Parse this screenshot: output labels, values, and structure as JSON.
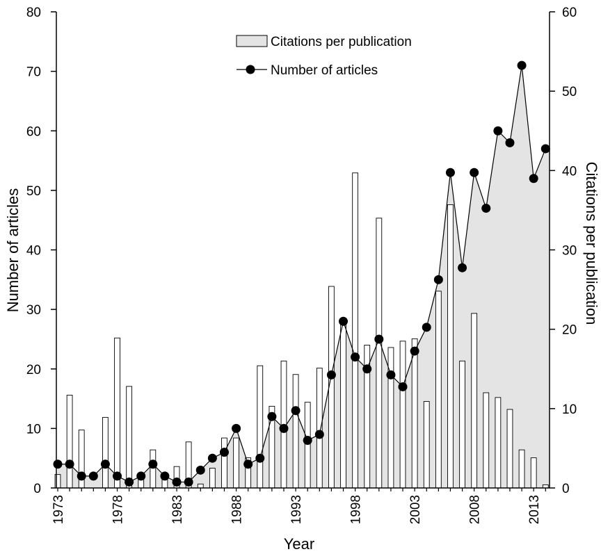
{
  "chart_data": {
    "type": "bar+area+line",
    "title": "",
    "xlabel": "Year",
    "ylabel_left": "Number of articles",
    "ylabel_right": "Citations per publication",
    "ylim_left": [
      0,
      80
    ],
    "ylim_right": [
      0,
      60
    ],
    "yticks_left": [
      "0",
      "10",
      "20",
      "30",
      "40",
      "50",
      "60",
      "70",
      "80"
    ],
    "yticks_right": [
      "0",
      "10",
      "20",
      "30",
      "40",
      "50",
      "60"
    ],
    "xtick_labels": [
      "1973",
      "1978",
      "1983",
      "1988",
      "1993",
      "1998",
      "2003",
      "2008",
      "2013"
    ],
    "x": [
      1973,
      1974,
      1975,
      1976,
      1977,
      1978,
      1979,
      1980,
      1981,
      1982,
      1983,
      1984,
      1985,
      1986,
      1987,
      1988,
      1989,
      1990,
      1991,
      1992,
      1993,
      1994,
      1995,
      1996,
      1997,
      1998,
      1999,
      2000,
      2001,
      2002,
      2003,
      2004,
      2005,
      2006,
      2007,
      2008,
      2009,
      2010,
      2011,
      2012,
      2013,
      2014
    ],
    "grid": false,
    "legend_position": "top-center",
    "series": [
      {
        "name": "Citations per publication",
        "axis": "right",
        "type": "bar",
        "color": "#ffffff",
        "values": [
          1.7,
          11.7,
          7.3,
          0,
          8.9,
          18.9,
          12.8,
          1.4,
          4.8,
          1.1,
          2.7,
          5.8,
          0.5,
          2.5,
          6.3,
          6.3,
          3.8,
          15.4,
          10.3,
          16.0,
          14.3,
          10.8,
          15.1,
          25.4,
          21.3,
          39.7,
          18.0,
          34.0,
          17.7,
          18.5,
          18.8,
          10.9,
          24.8,
          35.7,
          16.0,
          22.0,
          12.0,
          11.4,
          9.9,
          4.8,
          3.8,
          0.4
        ]
      },
      {
        "name": "Number of articles",
        "axis": "left",
        "type": "line+area",
        "color": "#000000",
        "fill": "#e4e4e4",
        "values": [
          4,
          4,
          2,
          2,
          4,
          2,
          1,
          2,
          4,
          2,
          1,
          1,
          3,
          5,
          6,
          10,
          4,
          5,
          12,
          10,
          13,
          8,
          9,
          19,
          28,
          22,
          20,
          25,
          19,
          17,
          23,
          27,
          35,
          53,
          37,
          53,
          47,
          60,
          58,
          71,
          52,
          57
        ]
      }
    ]
  }
}
